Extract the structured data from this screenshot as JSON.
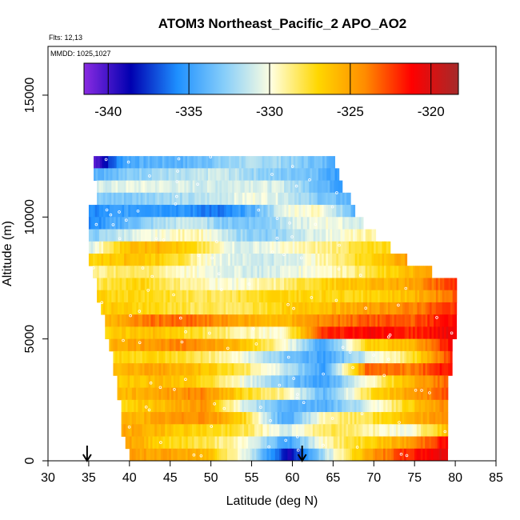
{
  "chart_data": {
    "type": "heatmap",
    "title": "ATOM3 Northeast_Pacific_2 APO_AO2",
    "annotations": [
      "Flts: 12,13",
      "MMDD: 1025,1027"
    ],
    "xlabel": "Latitude (deg N)",
    "ylabel": "Altitude (m)",
    "xlim": [
      30,
      85
    ],
    "ylim": [
      0,
      17000
    ],
    "x_ticks": [
      30,
      35,
      40,
      45,
      50,
      55,
      60,
      65,
      70,
      75,
      80,
      85
    ],
    "y_ticks": [
      0,
      5000,
      10000,
      15000
    ],
    "colorbar": {
      "range": [
        -341.5,
        -318.3
      ],
      "ticks": [
        -340,
        -335,
        -330,
        -325,
        -320
      ],
      "tick_labels": [
        "-340",
        "-335",
        "-330",
        "-325",
        "-320"
      ],
      "colors": [
        "#8a2be2",
        "#0000b0",
        "#1e90ff",
        "#87cefa",
        "#ffffe0",
        "#ffd700",
        "#ff8c00",
        "#ff0000",
        "#a52a2a"
      ]
    },
    "arrows_latitude": [
      34.8,
      61.2
    ],
    "profile_bands": [
      {
        "alt": [
          12000,
          12500
        ],
        "lat": [
          35.6,
          65.0
        ],
        "values": [
          -340.5,
          -334.5,
          -334.0,
          -334.0,
          -333.0,
          -332.0,
          -332.0,
          -333.0,
          -334.0
        ]
      },
      {
        "alt": [
          11500,
          12000
        ],
        "lat": [
          35.6,
          65.5
        ],
        "values": [
          -334.0,
          -333.0,
          -332.0,
          -332.0,
          -331.0,
          -332.0,
          -333.0,
          -333.0,
          -335.0
        ]
      },
      {
        "alt": [
          11000,
          11500
        ],
        "lat": [
          36.0,
          66.0
        ],
        "values": [
          -331.0,
          -330.5,
          -330.5,
          -331.0,
          -331.0,
          -330.5,
          -331.0,
          -333.0,
          -335.0
        ]
      },
      {
        "alt": [
          10500,
          11000
        ],
        "lat": [
          36.0,
          67.0
        ],
        "values": [
          -333.0,
          -333.0,
          -332.0,
          -332.0,
          -331.0,
          -330.0,
          -331.0,
          -333.0,
          -334.0
        ]
      },
      {
        "alt": [
          10000,
          10500
        ],
        "lat": [
          35.0,
          67.5
        ],
        "values": [
          -336.0,
          -335.0,
          -335.0,
          -335.5,
          -336.5,
          -334.0,
          -330.0,
          -329.5,
          -334.0
        ]
      },
      {
        "alt": [
          9500,
          10000
        ],
        "lat": [
          35.0,
          68.5
        ],
        "values": [
          -336.0,
          -334.0,
          -332.0,
          -331.0,
          -333.0,
          -333.0,
          -331.0,
          -330.0,
          -331.0
        ]
      },
      {
        "alt": [
          9000,
          9500
        ],
        "lat": [
          35.0,
          70.0
        ],
        "values": [
          -333.0,
          -331.0,
          -330.0,
          -329.0,
          -332.0,
          -333.0,
          -331.0,
          -330.0,
          -329.0
        ]
      },
      {
        "alt": [
          8500,
          9000
        ],
        "lat": [
          35.0,
          72.0
        ],
        "values": [
          -331.0,
          -326.0,
          -325.5,
          -328.0,
          -331.0,
          -330.0,
          -329.0,
          -328.0,
          -327.0
        ]
      },
      {
        "alt": [
          8000,
          8500
        ],
        "lat": [
          35.0,
          74.0
        ],
        "values": [
          -327.0,
          -326.0,
          -327.0,
          -330.0,
          -331.0,
          -331.0,
          -329.0,
          -327.0,
          -325.0
        ]
      },
      {
        "alt": [
          7500,
          8000
        ],
        "lat": [
          35.5,
          77.0
        ],
        "values": [
          -329.0,
          -328.0,
          -329.5,
          -330.5,
          -331.0,
          -330.0,
          -329.0,
          -327.0,
          -325.0
        ]
      },
      {
        "alt": [
          7000,
          7500
        ],
        "lat": [
          36.0,
          80.0
        ],
        "values": [
          -328.0,
          -327.0,
          -329.0,
          -330.0,
          -329.0,
          -327.0,
          -326.0,
          -325.0,
          -322.0
        ]
      },
      {
        "alt": [
          6500,
          7000
        ],
        "lat": [
          36.0,
          80.0
        ],
        "values": [
          -327.0,
          -327.0,
          -328.0,
          -328.0,
          -327.0,
          -327.0,
          -327.0,
          -326.0,
          -323.0
        ]
      },
      {
        "alt": [
          6000,
          6500
        ],
        "lat": [
          36.5,
          80.0
        ],
        "values": [
          -326.5,
          -327.0,
          -328.0,
          -328.5,
          -327.0,
          -326.0,
          -325.0,
          -324.0,
          -322.0
        ]
      },
      {
        "alt": [
          5500,
          6000
        ],
        "lat": [
          37.0,
          80.0
        ],
        "values": [
          -326.0,
          -323.5,
          -323.5,
          -325.0,
          -326.0,
          -324.0,
          -323.0,
          -323.0,
          -321.0
        ]
      },
      {
        "alt": [
          5000,
          5500
        ],
        "lat": [
          37.0,
          80.0
        ],
        "values": [
          -327.0,
          -326.0,
          -327.5,
          -329.0,
          -330.0,
          -322.0,
          -321.0,
          -322.0,
          -320.5
        ]
      },
      {
        "alt": [
          4500,
          5000
        ],
        "lat": [
          37.5,
          79.5
        ],
        "values": [
          -325.5,
          -324.5,
          -324.0,
          -326.0,
          -329.0,
          -335.0,
          -327.0,
          -326.0,
          -321.0
        ]
      },
      {
        "alt": [
          4000,
          4500
        ],
        "lat": [
          38.0,
          79.5
        ],
        "values": [
          -327.0,
          -327.0,
          -328.0,
          -330.0,
          -333.0,
          -335.0,
          -331.0,
          -328.0,
          -322.0
        ]
      },
      {
        "alt": [
          3500,
          4000
        ],
        "lat": [
          38.0,
          79.5
        ],
        "values": [
          -326.0,
          -325.0,
          -326.0,
          -328.0,
          -331.0,
          -335.0,
          -323.0,
          -324.0,
          -321.0
        ]
      },
      {
        "alt": [
          3000,
          3500
        ],
        "lat": [
          38.5,
          79.0
        ],
        "values": [
          -326.5,
          -326.0,
          -327.0,
          -330.0,
          -333.0,
          -335.0,
          -330.0,
          -326.0,
          -323.0
        ]
      },
      {
        "alt": [
          2500,
          3000
        ],
        "lat": [
          38.5,
          79.0
        ],
        "values": [
          -326.0,
          -325.0,
          -324.0,
          -327.0,
          -329.0,
          -334.0,
          -328.0,
          -325.0,
          -323.0
        ]
      },
      {
        "alt": [
          2000,
          2500
        ],
        "lat": [
          39.0,
          79.0
        ],
        "values": [
          -327.0,
          -326.0,
          -324.5,
          -331.0,
          -334.0,
          -334.0,
          -331.0,
          -327.0,
          -324.0
        ]
      },
      {
        "alt": [
          1500,
          2000
        ],
        "lat": [
          39.0,
          79.0
        ],
        "values": [
          -326.0,
          -325.0,
          -324.0,
          -327.0,
          -335.0,
          -329.0,
          -328.0,
          -326.0,
          -324.0
        ]
      },
      {
        "alt": [
          1000,
          1500
        ],
        "lat": [
          39.0,
          79.0
        ],
        "values": [
          -325.0,
          -326.0,
          -327.0,
          -328.0,
          -331.0,
          -328.0,
          -329.0,
          -330.0,
          -326.0
        ]
      },
      {
        "alt": [
          500,
          1000
        ],
        "lat": [
          39.5,
          79.0
        ],
        "values": [
          -325.0,
          -327.0,
          -328.0,
          -330.0,
          -335.0,
          -329.0,
          -327.0,
          -325.0,
          -321.0
        ]
      },
      {
        "alt": [
          0,
          500
        ],
        "lat": [
          40.0,
          79.0
        ],
        "values": [
          -325.0,
          -325.0,
          -326.0,
          -331.0,
          -339.0,
          -331.0,
          -325.0,
          -322.0,
          -320.0
        ]
      }
    ]
  }
}
